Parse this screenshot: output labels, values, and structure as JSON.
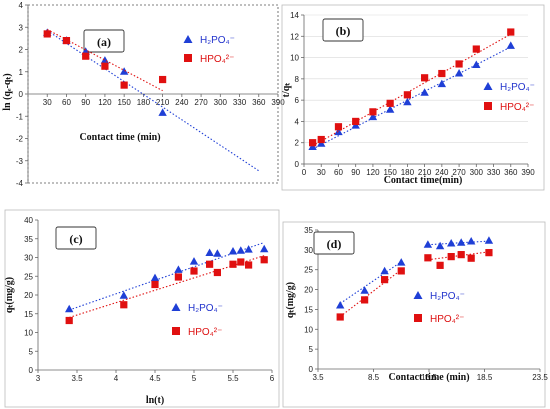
{
  "chart_data": [
    {
      "id": "a",
      "type": "scatter",
      "panel_label": "(a)",
      "xlabel": "Contact time (min)",
      "ylabel": "ln (qₑ-qₜ)",
      "xlim": [
        0,
        390
      ],
      "ylim": [
        -4,
        4
      ],
      "xticks": [
        30,
        60,
        90,
        120,
        150,
        180,
        210,
        240,
        270,
        300,
        330,
        360,
        390
      ],
      "yticks": [
        -4,
        -3,
        -2,
        -1,
        0,
        1,
        2,
        3,
        4
      ],
      "series": [
        {
          "name": "H₂PO₄⁻",
          "marker": "triangle",
          "color": "#1f3fd6",
          "x": [
            30,
            60,
            90,
            120,
            150,
            210
          ],
          "y": [
            2.75,
            2.4,
            1.9,
            1.5,
            1.0,
            -0.85
          ],
          "fit": [
            [
              30,
              2.85
            ],
            [
              360,
              -3.45
            ]
          ]
        },
        {
          "name": "HPO₄²⁻",
          "marker": "square",
          "color": "#e01010",
          "x": [
            30,
            60,
            90,
            120,
            150,
            210
          ],
          "y": [
            2.7,
            2.4,
            1.7,
            1.25,
            0.4,
            0.65
          ],
          "fit": [
            [
              30,
              2.9
            ],
            [
              210,
              0.15
            ]
          ]
        }
      ]
    },
    {
      "id": "b",
      "type": "scatter",
      "panel_label": "(b)",
      "xlabel": "Contact time(min)",
      "ylabel": "t/qₜ",
      "xlim": [
        0,
        390
      ],
      "ylim": [
        0,
        14
      ],
      "xticks": [
        0,
        30,
        60,
        90,
        120,
        150,
        180,
        210,
        240,
        270,
        300,
        330,
        360,
        390
      ],
      "yticks": [
        0,
        2,
        4,
        6,
        8,
        10,
        12,
        14
      ],
      "grid": true,
      "series": [
        {
          "name": "H₂PO₄⁻",
          "marker": "triangle",
          "color": "#1f3fd6",
          "x": [
            15,
            30,
            60,
            90,
            120,
            150,
            180,
            210,
            240,
            270,
            300,
            360
          ],
          "y": [
            1.6,
            1.9,
            3.0,
            3.6,
            4.4,
            5.1,
            5.8,
            6.7,
            7.5,
            8.5,
            9.3,
            11.1
          ],
          "fit": [
            [
              15,
              1.4
            ],
            [
              360,
              11.0
            ]
          ]
        },
        {
          "name": "HPO₄²⁻",
          "marker": "square",
          "color": "#e01010",
          "x": [
            15,
            30,
            60,
            90,
            120,
            150,
            180,
            210,
            240,
            270,
            300,
            360
          ],
          "y": [
            2.0,
            2.3,
            3.5,
            4.0,
            4.9,
            5.7,
            6.5,
            8.1,
            8.5,
            9.4,
            10.8,
            12.4
          ],
          "fit": [
            [
              15,
              1.7
            ],
            [
              360,
              12.2
            ]
          ]
        }
      ]
    },
    {
      "id": "c",
      "type": "scatter",
      "panel_label": "(c)",
      "xlabel": "ln(t)",
      "ylabel": "qₜ(mg/g)",
      "xlim": [
        3,
        6
      ],
      "ylim": [
        0,
        40
      ],
      "xticks": [
        3,
        3.5,
        4,
        4.5,
        5,
        5.5,
        6
      ],
      "yticks": [
        0,
        5,
        10,
        15,
        20,
        25,
        30,
        35,
        40
      ],
      "series": [
        {
          "name": "H₂PO₄⁻",
          "marker": "triangle",
          "color": "#1f3fd6",
          "x": [
            3.4,
            4.1,
            4.5,
            4.8,
            5.0,
            5.2,
            5.3,
            5.5,
            5.6,
            5.7,
            5.9
          ],
          "y": [
            16.2,
            19.8,
            24.5,
            26.7,
            28.9,
            31.2,
            31.0,
            31.6,
            31.8,
            32.1,
            32.2
          ],
          "fit": [
            [
              3.4,
              16.0
            ],
            [
              5.9,
              34.0
            ]
          ]
        },
        {
          "name": "HPO₄²⁻",
          "marker": "square",
          "color": "#e01010",
          "x": [
            3.4,
            4.1,
            4.5,
            4.8,
            5.0,
            5.2,
            5.3,
            5.5,
            5.6,
            5.7,
            5.9
          ],
          "y": [
            13.2,
            17.4,
            22.8,
            24.8,
            26.4,
            28.2,
            26.0,
            28.2,
            28.8,
            28.0,
            29.4
          ],
          "fit": [
            [
              3.4,
              14.0
            ],
            [
              5.9,
              30.5
            ]
          ]
        }
      ]
    },
    {
      "id": "d",
      "type": "scatter",
      "panel_label": "(d)",
      "xlabel": "Contact time (min)",
      "ylabel": "qₜ(mg/g)",
      "xlim": [
        3.5,
        23.5
      ],
      "ylim": [
        0,
        35
      ],
      "xticks": [
        3.5,
        8.5,
        13.5,
        18.5,
        23.5
      ],
      "yticks": [
        0,
        5,
        10,
        15,
        20,
        25,
        30,
        35
      ],
      "series": [
        {
          "name": "H₂PO₄⁻",
          "marker": "triangle",
          "color": "#1f3fd6",
          "x": [
            5.5,
            7.7,
            9.5,
            11.0,
            13.4,
            14.5,
            15.5,
            16.4,
            17.3,
            18.9
          ],
          "y": [
            16.0,
            19.7,
            24.6,
            26.8,
            31.3,
            30.9,
            31.6,
            31.8,
            32.1,
            32.3
          ],
          "fit_segments": [
            [
              [
                5.5,
                16.5
              ],
              [
                11.0,
                27.0
              ]
            ],
            [
              [
                13.4,
                31.3
              ],
              [
                18.9,
                32.2
              ]
            ]
          ]
        },
        {
          "name": "HPO₄²⁻",
          "marker": "square",
          "color": "#e01010",
          "x": [
            5.5,
            7.7,
            9.5,
            11.0,
            13.4,
            14.5,
            15.5,
            16.4,
            17.3,
            18.9
          ],
          "y": [
            13.1,
            17.4,
            22.5,
            24.7,
            28.0,
            26.1,
            28.3,
            28.8,
            27.9,
            29.3
          ],
          "fit_segments": [
            [
              [
                5.5,
                13.2
              ],
              [
                11.0,
                25.0
              ]
            ],
            [
              [
                13.4,
                27.5
              ],
              [
                18.9,
                29.5
              ]
            ]
          ]
        }
      ]
    }
  ]
}
